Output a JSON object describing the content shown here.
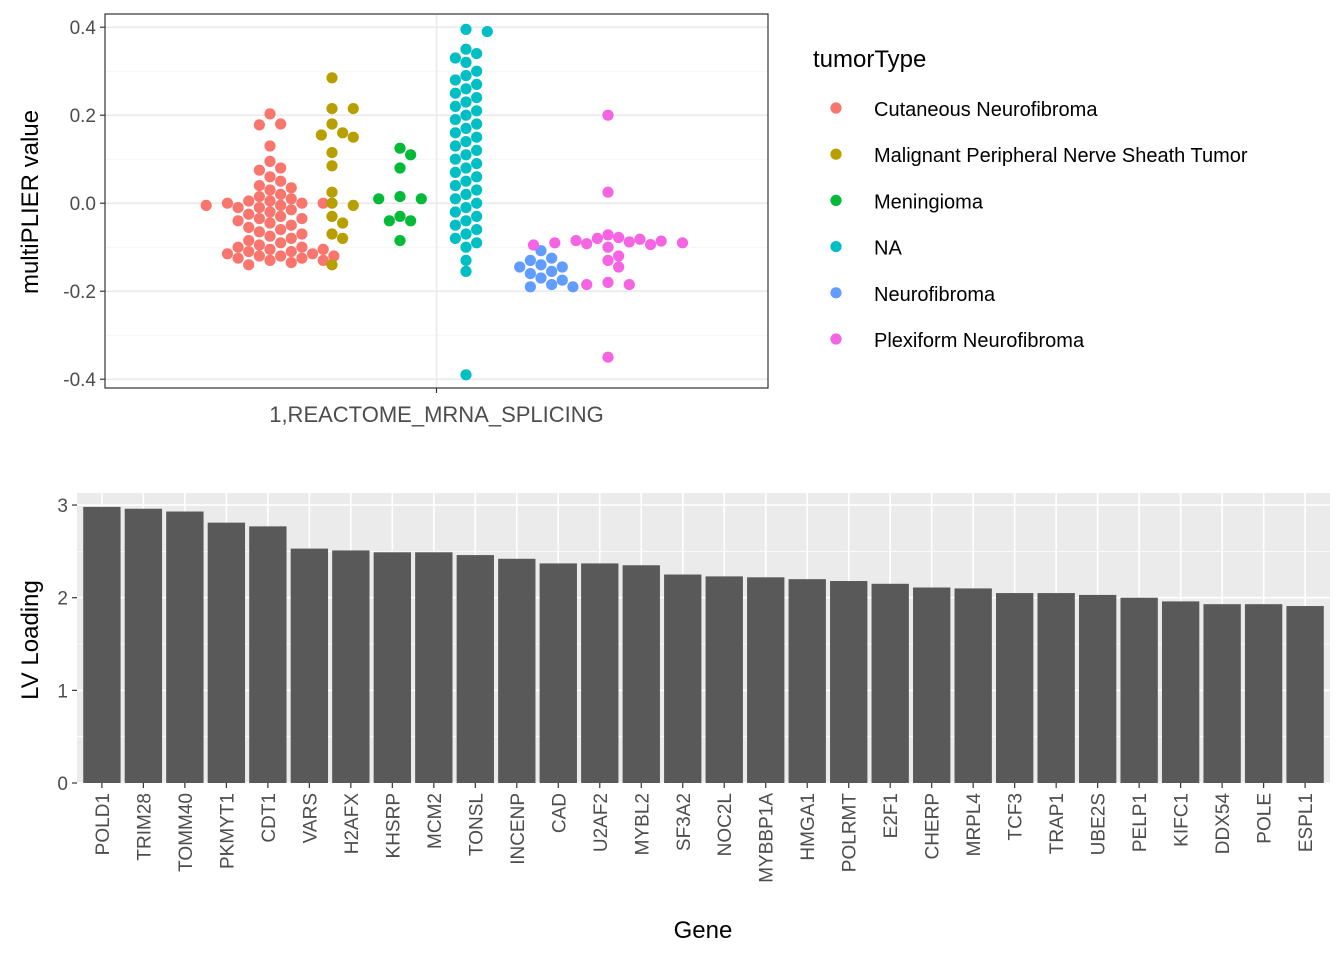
{
  "chart_data": [
    {
      "type": "scatter",
      "subtype": "beeswarm",
      "xlabel": "",
      "ylabel": "multiPLIER value",
      "ylim": [
        -0.42,
        0.43
      ],
      "yticks": [
        "0.4",
        "0.2",
        "0.0",
        "-0.2",
        "-0.4"
      ],
      "ytick_values": [
        0.4,
        0.2,
        0.0,
        -0.2,
        -0.4
      ],
      "categories": [
        "1,REACTOME_MRNA_SPLICING"
      ],
      "grid": true,
      "legend_title": "tumorType",
      "legend_position": "right",
      "series": [
        {
          "name": "Cutaneous Neurofibroma",
          "color": "#F8766D",
          "values": [
            0.203,
            0.18,
            0.178,
            0.13,
            0.095,
            0.08,
            0.075,
            0.06,
            0.05,
            0.04,
            0.035,
            0.03,
            0.02,
            0.015,
            0.01,
            0.005,
            0.005,
            0.0,
            0.0,
            0.0,
            -0.005,
            -0.005,
            -0.01,
            -0.01,
            -0.015,
            -0.02,
            -0.025,
            -0.03,
            -0.035,
            -0.035,
            -0.04,
            -0.045,
            -0.05,
            -0.055,
            -0.06,
            -0.065,
            -0.07,
            -0.075,
            -0.08,
            -0.085,
            -0.09,
            -0.095,
            -0.1,
            -0.1,
            -0.105,
            -0.105,
            -0.11,
            -0.11,
            -0.115,
            -0.115,
            -0.12,
            -0.12,
            -0.12,
            -0.125,
            -0.125,
            -0.13,
            -0.13,
            -0.135,
            -0.14
          ]
        },
        {
          "name": "Malignant Peripheral Nerve Sheath Tumor",
          "color": "#B79F00",
          "values": [
            0.285,
            0.215,
            0.215,
            0.18,
            0.16,
            0.155,
            0.15,
            0.115,
            0.085,
            0.025,
            0.0,
            -0.005,
            -0.03,
            -0.045,
            -0.07,
            -0.08,
            -0.14
          ]
        },
        {
          "name": "Meningioma",
          "color": "#00BA38",
          "values": [
            0.125,
            0.11,
            0.08,
            0.015,
            0.01,
            0.01,
            -0.03,
            -0.04,
            -0.04,
            -0.085
          ]
        },
        {
          "name": "NA",
          "color": "#00BFC4",
          "values": [
            0.395,
            0.39,
            0.35,
            0.34,
            0.33,
            0.32,
            0.3,
            0.29,
            0.28,
            0.27,
            0.26,
            0.25,
            0.24,
            0.23,
            0.22,
            0.21,
            0.2,
            0.19,
            0.18,
            0.17,
            0.16,
            0.15,
            0.14,
            0.13,
            0.12,
            0.11,
            0.1,
            0.09,
            0.08,
            0.07,
            0.06,
            0.05,
            0.04,
            0.03,
            0.02,
            0.01,
            0.0,
            -0.01,
            -0.02,
            -0.03,
            -0.04,
            -0.05,
            -0.06,
            -0.07,
            -0.08,
            -0.09,
            -0.1,
            -0.13,
            -0.155,
            -0.39
          ]
        },
        {
          "name": "Neurofibroma",
          "color": "#619CFF",
          "values": [
            -0.108,
            -0.125,
            -0.13,
            -0.14,
            -0.145,
            -0.145,
            -0.155,
            -0.16,
            -0.17,
            -0.175,
            -0.185,
            -0.19,
            -0.19
          ]
        },
        {
          "name": "Plexiform Neurofibroma",
          "color": "#F564E3",
          "values": [
            0.2,
            0.025,
            -0.072,
            -0.078,
            -0.08,
            -0.082,
            -0.085,
            -0.086,
            -0.088,
            -0.09,
            -0.09,
            -0.092,
            -0.094,
            -0.095,
            -0.1,
            -0.12,
            -0.13,
            -0.145,
            -0.18,
            -0.185,
            -0.185,
            -0.35
          ]
        }
      ]
    },
    {
      "type": "bar",
      "xlabel": "Gene",
      "ylabel": "LV Loading",
      "ylim": [
        0,
        3.13
      ],
      "yticks": [
        "0",
        "1",
        "2",
        "3"
      ],
      "ytick_values": [
        0,
        1,
        2,
        3
      ],
      "bar_color": "#595959",
      "grid": true,
      "categories": [
        "POLD1",
        "TRIM28",
        "TOMM40",
        "PKMYT1",
        "CDT1",
        "VARS",
        "H2AFX",
        "KHSRP",
        "MCM2",
        "TONSL",
        "INCENP",
        "CAD",
        "U2AF2",
        "MYBL2",
        "SF3A2",
        "NOC2L",
        "MYBBP1A",
        "HMGA1",
        "POLRMT",
        "E2F1",
        "CHERP",
        "MRPL4",
        "TCF3",
        "TRAP1",
        "UBE2S",
        "PELP1",
        "KIFC1",
        "DDX54",
        "POLE",
        "ESPL1"
      ],
      "values": [
        2.98,
        2.96,
        2.93,
        2.81,
        2.77,
        2.53,
        2.51,
        2.49,
        2.49,
        2.46,
        2.42,
        2.37,
        2.37,
        2.35,
        2.25,
        2.23,
        2.22,
        2.2,
        2.18,
        2.15,
        2.11,
        2.1,
        2.05,
        2.05,
        2.03,
        2.0,
        1.96,
        1.93,
        1.93,
        1.91
      ]
    }
  ]
}
